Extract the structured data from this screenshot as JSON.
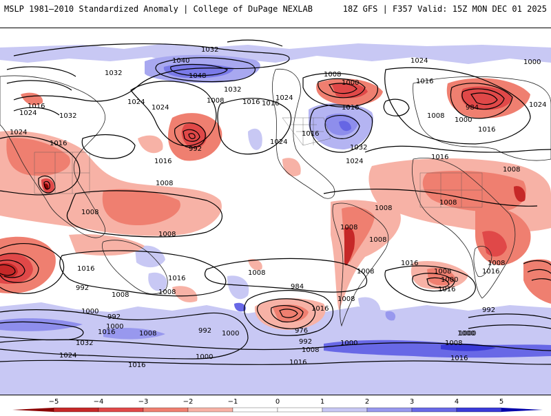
{
  "header": {
    "left": "MSLP 1981–2010 Standardized Anomaly | College of DuPage NEXLAB",
    "right": "18Z GFS | F357 Valid: 15Z MON DEC 01 2025"
  },
  "colorbar": {
    "ticks": [
      "−5",
      "−4",
      "−3",
      "−2",
      "−1",
      "0",
      "1",
      "2",
      "3",
      "4",
      "5"
    ],
    "colors": [
      "#8b0000",
      "#c62828",
      "#e04848",
      "#ef7f70",
      "#f7b2a6",
      "#ffffff",
      "#ffffff",
      "#c8c8f4",
      "#9898ee",
      "#6868e6",
      "#3a3ad8",
      "#0000aa"
    ]
  },
  "isobars": [
    {
      "text": "1032",
      "id": "iso-1032-a"
    },
    {
      "text": "1040",
      "id": "iso-1040-a"
    },
    {
      "text": "1048",
      "id": "iso-1048-a"
    },
    {
      "text": "1032",
      "id": "iso-1032-b"
    },
    {
      "text": "1008",
      "id": "iso-1008-a"
    },
    {
      "text": "1016",
      "id": "iso-1016-a"
    },
    {
      "text": "1032",
      "id": "iso-1032-c"
    },
    {
      "text": "1024",
      "id": "iso-1024-a"
    },
    {
      "text": "1024",
      "id": "iso-1024-b"
    },
    {
      "text": "1016",
      "id": "iso-1016-b"
    },
    {
      "text": "1024",
      "id": "iso-1024-c"
    },
    {
      "text": "1032",
      "id": "iso-1032-d"
    },
    {
      "text": "1024",
      "id": "iso-1024-d"
    },
    {
      "text": "1016",
      "id": "iso-1016-c"
    },
    {
      "text": "992",
      "id": "iso-992-a"
    },
    {
      "text": "1016",
      "id": "iso-1016-d"
    },
    {
      "text": "1008",
      "id": "iso-1008-b"
    },
    {
      "text": "1008",
      "id": "iso-1008-c"
    },
    {
      "text": "1008",
      "id": "iso-1008-d"
    },
    {
      "text": "1008",
      "id": "iso-1008-e"
    },
    {
      "text": "1000",
      "id": "iso-1000-a"
    },
    {
      "text": "1016",
      "id": "iso-1016-e"
    },
    {
      "text": "1024",
      "id": "iso-1024-e"
    },
    {
      "text": "1016",
      "id": "iso-1016-f"
    },
    {
      "text": "1024",
      "id": "iso-1024-f"
    },
    {
      "text": "1016",
      "id": "iso-1016-g"
    },
    {
      "text": "1032",
      "id": "iso-1032-e"
    },
    {
      "text": "1024",
      "id": "iso-1024-g"
    },
    {
      "text": "1024",
      "id": "iso-1024-h"
    },
    {
      "text": "1016",
      "id": "iso-1016-h"
    },
    {
      "text": "984",
      "id": "iso-984-a"
    },
    {
      "text": "1000",
      "id": "iso-1000-b"
    },
    {
      "text": "1000",
      "id": "iso-1000-c"
    },
    {
      "text": "1016",
      "id": "iso-1016-i"
    },
    {
      "text": "1024",
      "id": "iso-1024-i"
    },
    {
      "text": "1008",
      "id": "iso-1008-f"
    },
    {
      "text": "1016",
      "id": "iso-1016-j"
    },
    {
      "text": "1008",
      "id": "iso-1008-g"
    },
    {
      "text": "1008",
      "id": "iso-1008-h"
    },
    {
      "text": "1008",
      "id": "iso-1008-i"
    },
    {
      "text": "1008",
      "id": "iso-1008-j"
    },
    {
      "text": "1008",
      "id": "iso-1008-k"
    },
    {
      "text": "1016",
      "id": "iso-1016-k"
    },
    {
      "text": "1008",
      "id": "iso-1008-l"
    },
    {
      "text": "1008",
      "id": "iso-1008-m"
    },
    {
      "text": "1016",
      "id": "iso-1016-l"
    },
    {
      "text": "1016",
      "id": "iso-1016-m"
    },
    {
      "text": "1016",
      "id": "iso-1016-n"
    },
    {
      "text": "1008",
      "id": "iso-1008-n"
    },
    {
      "text": "992",
      "id": "iso-992-b"
    },
    {
      "text": "1008",
      "id": "iso-1008-o"
    },
    {
      "text": "1008",
      "id": "iso-1008-p"
    },
    {
      "text": "984",
      "id": "iso-984-b"
    },
    {
      "text": "1016",
      "id": "iso-1016-o"
    },
    {
      "text": "1008",
      "id": "iso-1008-q"
    },
    {
      "text": "1008",
      "id": "iso-1008-r"
    },
    {
      "text": "1000",
      "id": "iso-1000-d"
    },
    {
      "text": "1016",
      "id": "iso-1016-p"
    },
    {
      "text": "1000",
      "id": "iso-1000-e"
    },
    {
      "text": "992",
      "id": "iso-992-c"
    },
    {
      "text": "1000",
      "id": "iso-1000-f"
    },
    {
      "text": "1016",
      "id": "iso-1016-q"
    },
    {
      "text": "992",
      "id": "iso-992-d"
    },
    {
      "text": "1000",
      "id": "iso-1000-g"
    },
    {
      "text": "976",
      "id": "iso-976"
    },
    {
      "text": "992",
      "id": "iso-992-e"
    },
    {
      "text": "1000",
      "id": "iso-1000-h"
    },
    {
      "text": "1000",
      "id": "iso-1000-i"
    },
    {
      "text": "992",
      "id": "iso-992-f"
    },
    {
      "text": "1032",
      "id": "iso-1032-f"
    },
    {
      "text": "1008",
      "id": "iso-1008-s"
    },
    {
      "text": "1024",
      "id": "iso-1024-j"
    },
    {
      "text": "1000",
      "id": "iso-1000-j"
    },
    {
      "text": "1008",
      "id": "iso-1008-t"
    },
    {
      "text": "1008",
      "id": "iso-1008-u"
    },
    {
      "text": "1000",
      "id": "iso-1000-k"
    },
    {
      "text": "1016",
      "id": "iso-1016-r"
    },
    {
      "text": "1016",
      "id": "iso-1016-s"
    },
    {
      "text": "1016",
      "id": "iso-1016-t"
    }
  ]
}
